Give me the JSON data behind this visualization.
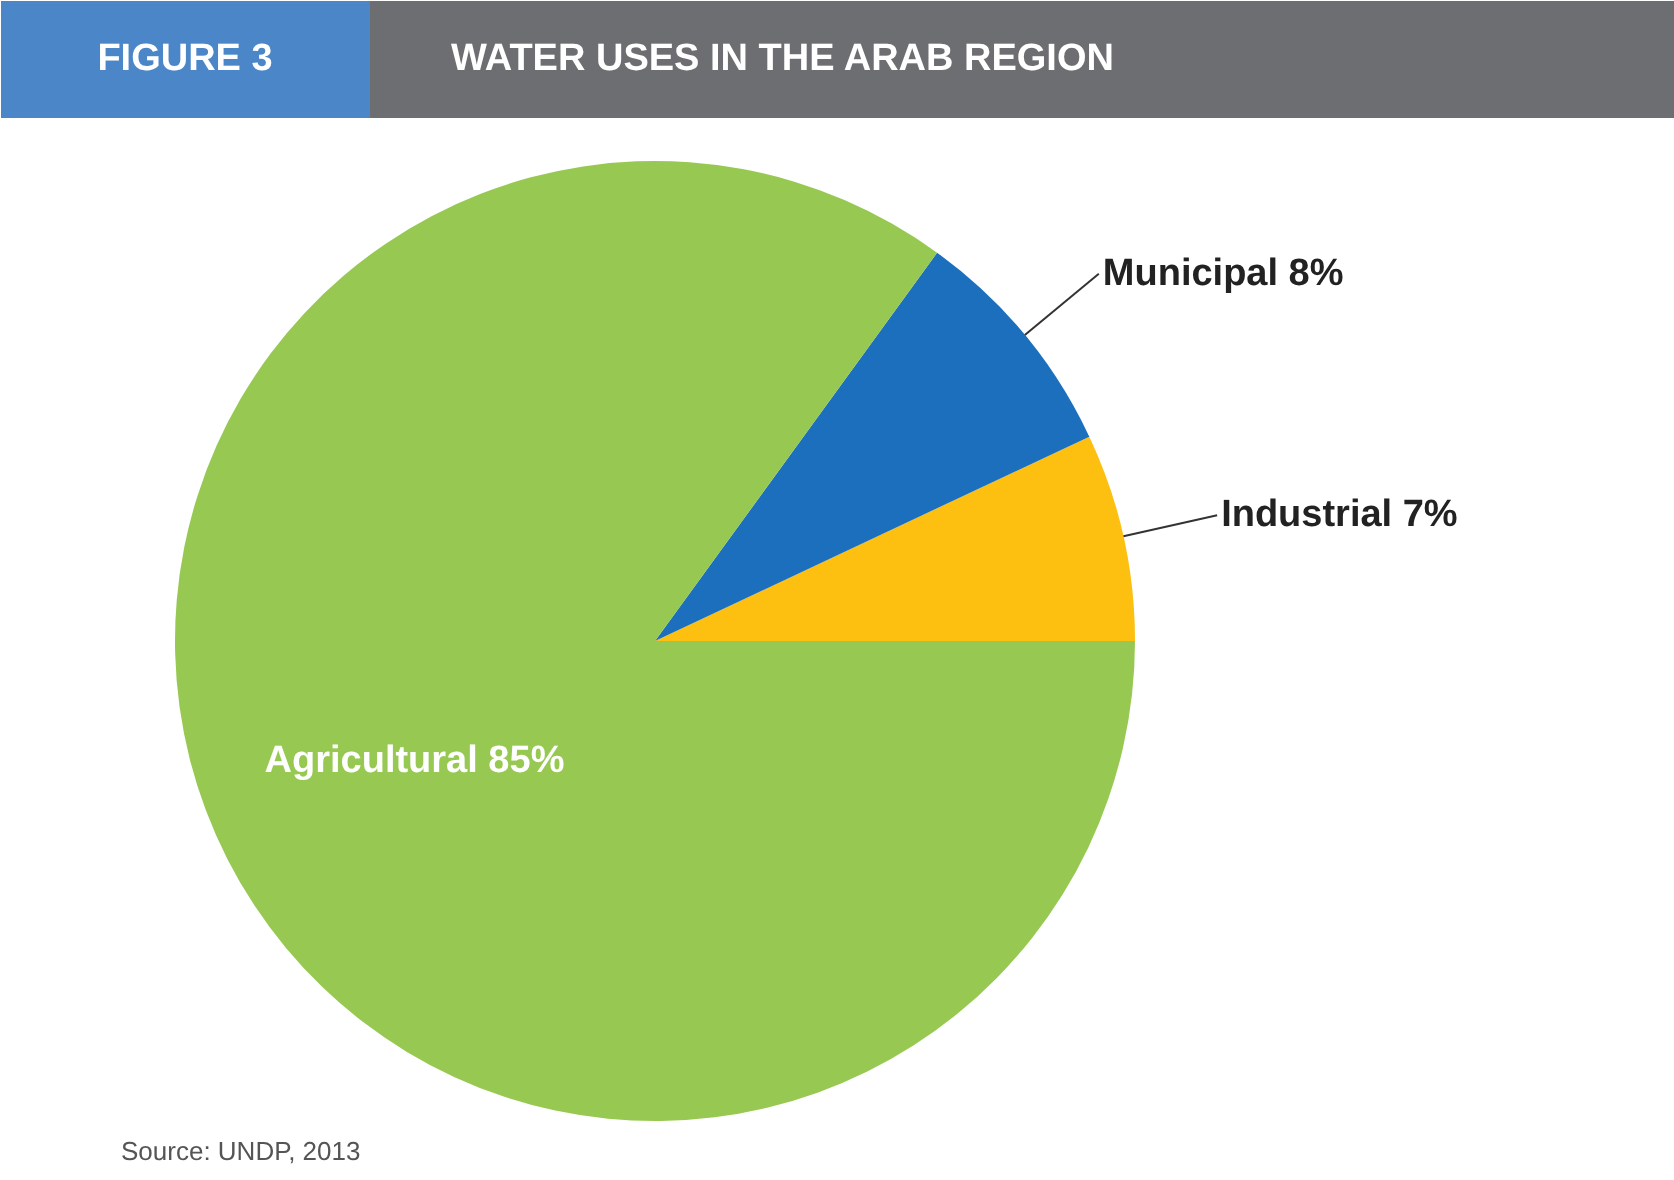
{
  "chart_data": {
    "type": "pie",
    "subtitle": "FIGURE 3",
    "title": "WATER USES IN THE ARAB REGION",
    "categories": [
      "Industrial",
      "Municipal",
      "Agricultural"
    ],
    "values": [
      7,
      8,
      85
    ],
    "colors": [
      "#fdbf10",
      "#1b6fbd",
      "#97c952"
    ],
    "value_labels": [
      "7%",
      "8%",
      "85%"
    ],
    "annotations": [
      "Source: UNDP, 2013"
    ]
  }
}
